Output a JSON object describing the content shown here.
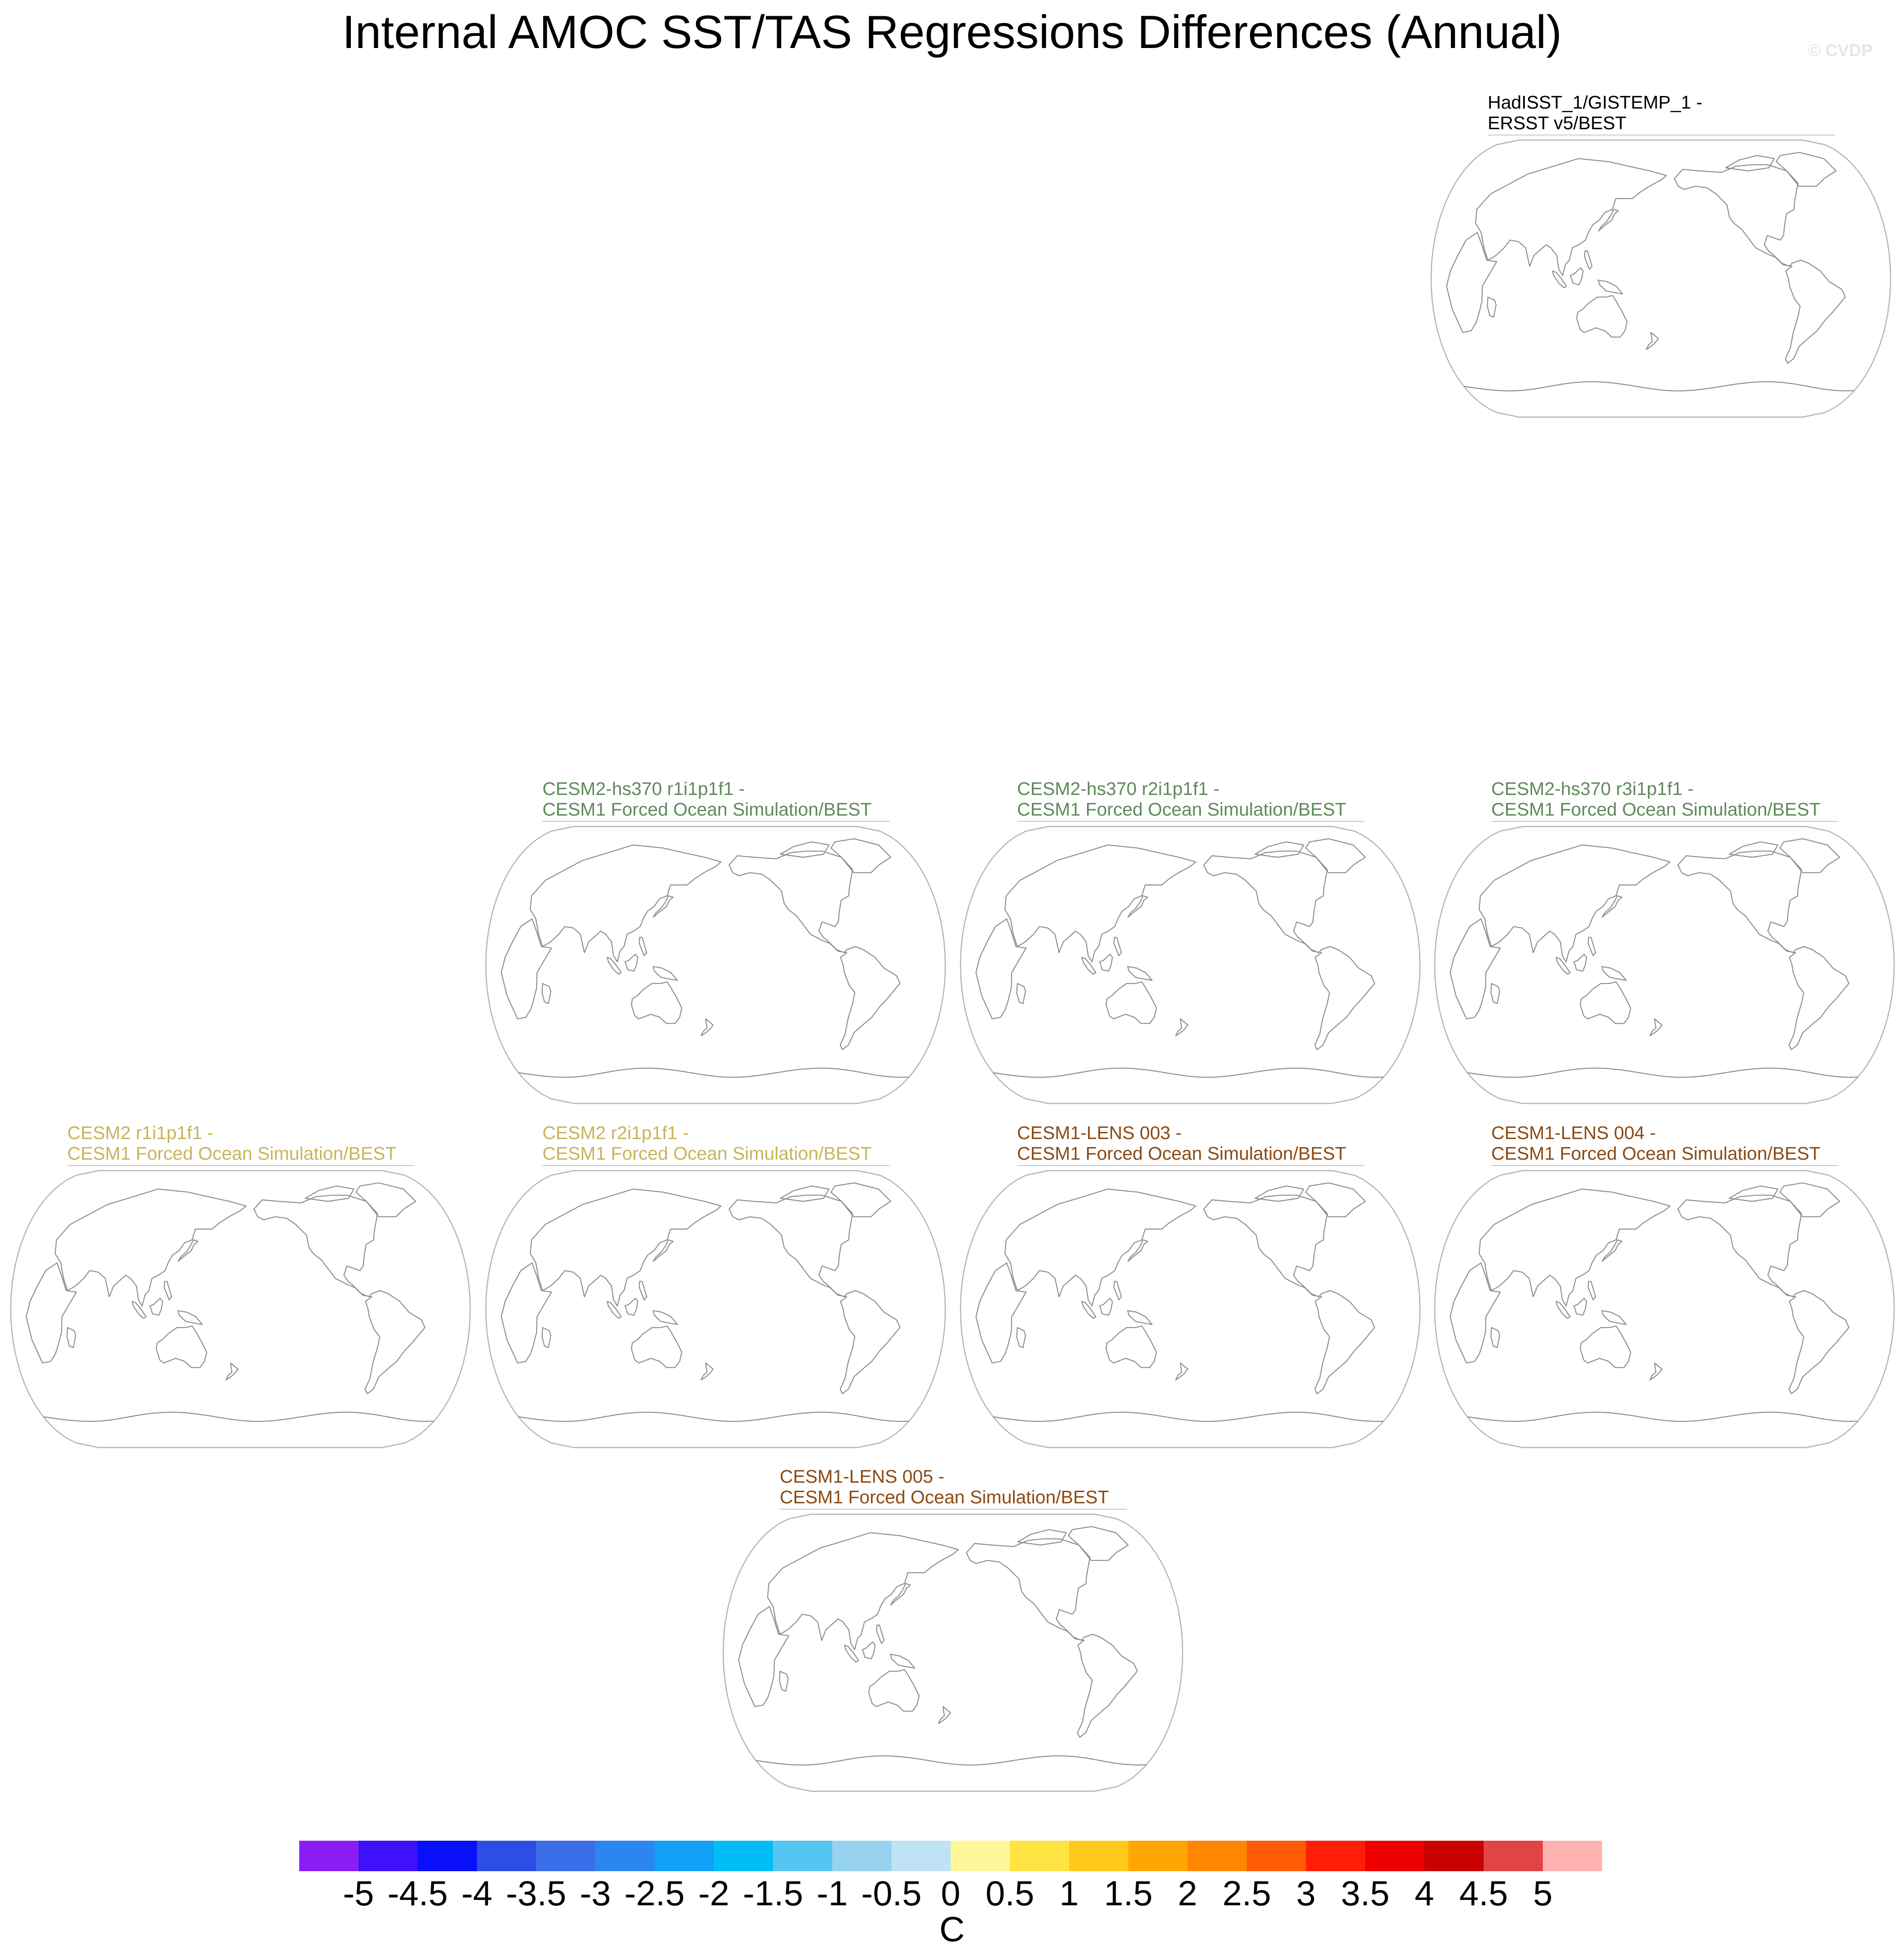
{
  "title": "Internal AMOC SST/TAS Regressions Differences (Annual)",
  "watermark": "© CVDP",
  "colors": {
    "obs": "#000000",
    "cesm2_hs370": "#5e8a5a",
    "cesm2": "#c8b45a",
    "cesm1_lens": "#8a4a14",
    "coastline": "#8c8c8c",
    "map_border": "#b4b4b4"
  },
  "panels": [
    {
      "line1": "HadISST_1/GISTEMP_1 -",
      "line2": "ERSST v5/BEST",
      "color_key": "obs"
    },
    {
      "line1": "CESM2-hs370 r1i1p1f1 -",
      "line2": "CESM1 Forced Ocean Simulation/BEST",
      "color_key": "cesm2_hs370"
    },
    {
      "line1": "CESM2-hs370 r2i1p1f1 -",
      "line2": "CESM1 Forced Ocean Simulation/BEST",
      "color_key": "cesm2_hs370"
    },
    {
      "line1": "CESM2-hs370 r3i1p1f1 -",
      "line2": "CESM1 Forced Ocean Simulation/BEST",
      "color_key": "cesm2_hs370"
    },
    {
      "line1": "CESM2 r1i1p1f1 -",
      "line2": "CESM1 Forced Ocean Simulation/BEST",
      "color_key": "cesm2"
    },
    {
      "line1": "CESM2 r2i1p1f1 -",
      "line2": "CESM1 Forced Ocean Simulation/BEST",
      "color_key": "cesm2"
    },
    {
      "line1": "CESM1-LENS 003 -",
      "line2": "CESM1 Forced Ocean Simulation/BEST",
      "color_key": "cesm1_lens"
    },
    {
      "line1": "CESM1-LENS 004 -",
      "line2": "CESM1 Forced Ocean Simulation/BEST",
      "color_key": "cesm1_lens"
    },
    {
      "line1": "CESM1-LENS 005 -",
      "line2": "CESM1 Forced Ocean Simulation/BEST",
      "color_key": "cesm1_lens"
    }
  ],
  "colorbar": {
    "units": "C",
    "labels": [
      "-5",
      "-4.5",
      "-4",
      "-3.5",
      "-3",
      "-2.5",
      "-2",
      "-1.5",
      "-1",
      "-0.5",
      "0",
      "0.5",
      "1",
      "1.5",
      "2",
      "2.5",
      "3",
      "3.5",
      "4",
      "4.5",
      "5"
    ],
    "colors": [
      "#8a1ef2",
      "#3f10fa",
      "#0a0ffa",
      "#2d4de6",
      "#3a6ee8",
      "#2b86f2",
      "#12a0f6",
      "#00bdf6",
      "#55c6f2",
      "#96d2ee",
      "#bfe2f4",
      "#fff89a",
      "#ffe443",
      "#ffc91c",
      "#ffa700",
      "#ff8600",
      "#ff5a06",
      "#ff1e06",
      "#ee0000",
      "#c80000",
      "#e04444",
      "#ffb2b2"
    ]
  }
}
